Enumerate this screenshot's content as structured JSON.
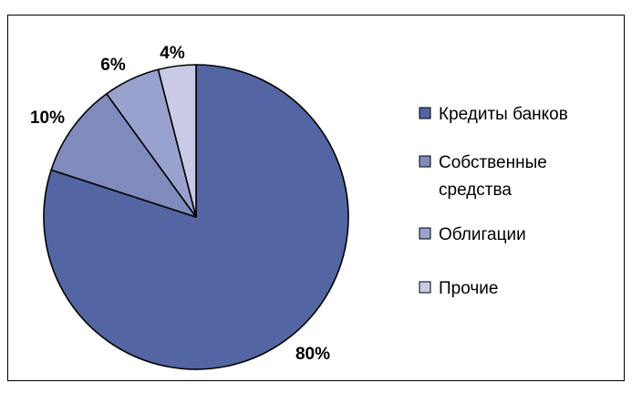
{
  "chart_data": {
    "type": "pie",
    "title": "",
    "start_angle_deg": 0,
    "direction": "clockwise",
    "slices": [
      {
        "label": "Кредиты банков",
        "value": 80,
        "value_label": "80%",
        "color": "#5366a3"
      },
      {
        "label": "Собственные средства",
        "value": 10,
        "value_label": "10%",
        "color": "#7f8bbd"
      },
      {
        "label": "Облигации",
        "value": 6,
        "value_label": "6%",
        "color": "#99a2cf"
      },
      {
        "label": "Прочие",
        "value": 4,
        "value_label": "4%",
        "color": "#c9cbe6"
      }
    ],
    "legend": {
      "position": "right",
      "entries": [
        {
          "lines": [
            "Кредиты банков"
          ],
          "color": "#5366a3"
        },
        {
          "lines": [
            "Собственные",
            "средства"
          ],
          "color": "#7f8bbd"
        },
        {
          "lines": [
            "Облигации"
          ],
          "color": "#99a2cf"
        },
        {
          "lines": [
            "Прочие"
          ],
          "color": "#c9cbe6"
        }
      ]
    }
  }
}
